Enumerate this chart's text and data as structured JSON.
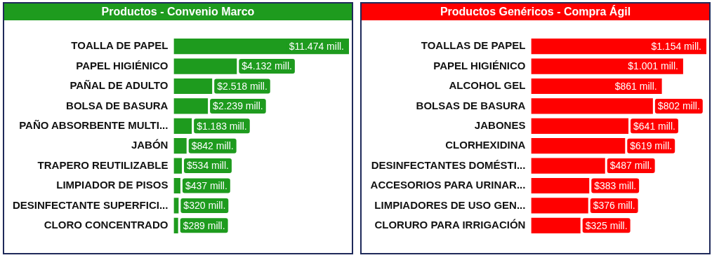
{
  "chart_data": [
    {
      "type": "bar",
      "orientation": "horizontal",
      "title": "Productos - Convenio Marco",
      "tick_labels": "y",
      "grid": false,
      "legend": false,
      "color": "#1e9b1e",
      "categories": [
        "TOALLA DE PAPEL",
        "PAPEL HIGIÉNICO",
        "PAÑAL DE ADULTO",
        "BOLSA DE BASURA",
        "PAÑO ABSORBENTE MULTI...",
        "JABÓN",
        "TRAPERO REUTILIZABLE",
        "LIMPIADOR DE PISOS",
        "DESINFECTANTE SUPERFICI...",
        "CLORO CONCENTRADO"
      ],
      "values": [
        11474,
        4132,
        2518,
        2239,
        1183,
        842,
        534,
        437,
        320,
        289
      ],
      "value_labels": [
        "$11.474 mill.",
        "$4.132 mill.",
        "$2.518 mill.",
        "$2.239 mill.",
        "$1.183 mill.",
        "$842 mill.",
        "$534 mill.",
        "$437 mill.",
        "$320 mill.",
        "$289 mill."
      ]
    },
    {
      "type": "bar",
      "orientation": "horizontal",
      "title": "Productos Genéricos - Compra Ágil",
      "tick_labels": "y",
      "grid": false,
      "legend": false,
      "color": "#ff0000",
      "categories": [
        "TOALLAS DE PAPEL",
        "PAPEL HIGIÉNICO",
        "ALCOHOL GEL",
        "BOLSAS DE BASURA",
        "JABONES",
        "CLORHEXIDINA",
        "DESINFECTANTES DOMÉSTI...",
        "ACCESORIOS PARA URINAR...",
        "LIMPIADORES DE USO GEN...",
        "CLORURO PARA IRRIGACIÓN"
      ],
      "values": [
        1154,
        1001,
        861,
        802,
        641,
        619,
        487,
        383,
        376,
        325
      ],
      "value_labels": [
        "$1.154 mill.",
        "$1.001 mill.",
        "$861 mill.",
        "$802 mill.",
        "$641 mill.",
        "$619 mill.",
        "$487 mill.",
        "$383 mill.",
        "$376 mill.",
        "$325 mill."
      ]
    }
  ]
}
